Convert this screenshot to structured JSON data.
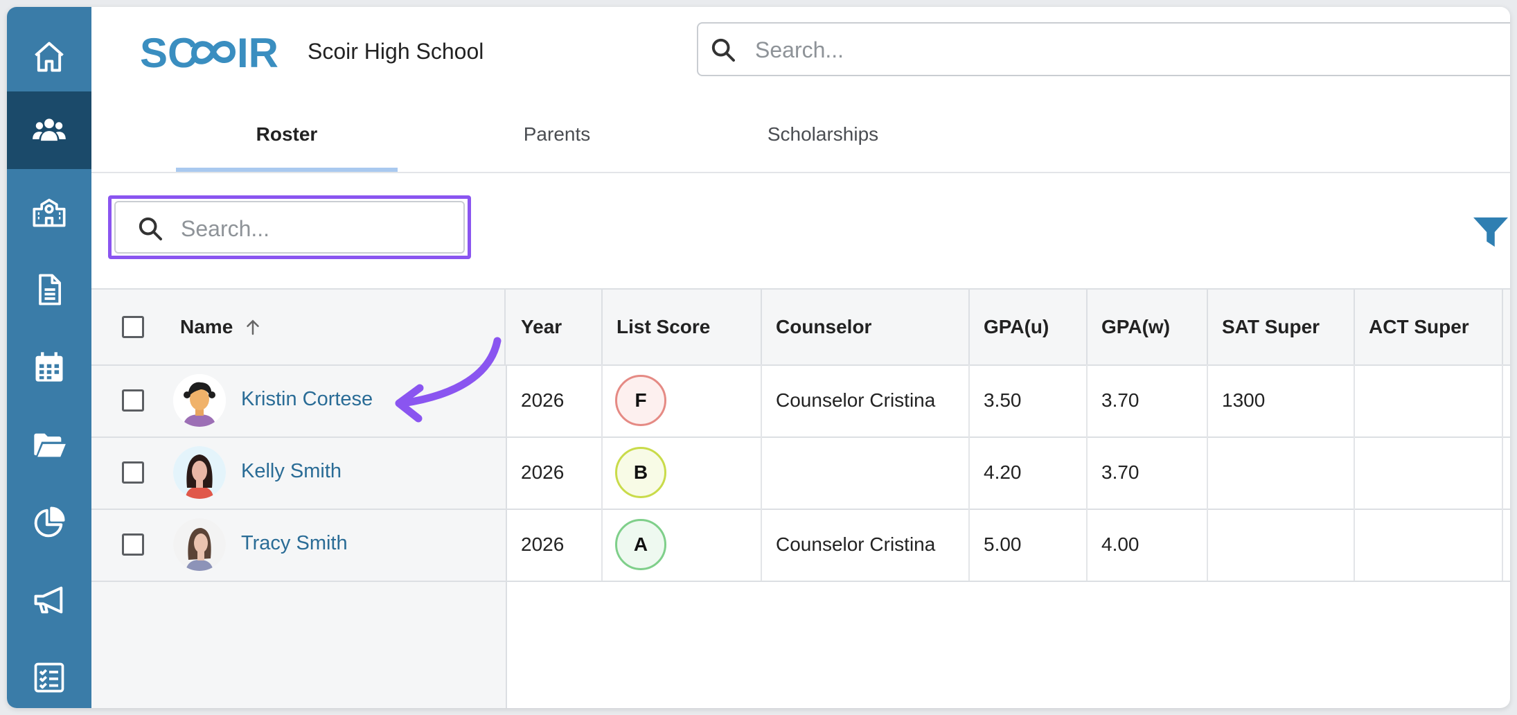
{
  "sidebar": {
    "items": [
      {
        "icon": "home-icon",
        "active": false
      },
      {
        "icon": "users-icon",
        "active": true
      },
      {
        "icon": "school-icon",
        "active": false
      },
      {
        "icon": "document-icon",
        "active": false
      },
      {
        "icon": "calendar-icon",
        "active": false
      },
      {
        "icon": "folder-open-icon",
        "active": false
      },
      {
        "icon": "pie-chart-icon",
        "active": false
      },
      {
        "icon": "megaphone-icon",
        "active": false
      },
      {
        "icon": "checklist-icon",
        "active": false
      }
    ],
    "bg_color": "#3a7ca8",
    "active_color": "#1b4a6a"
  },
  "header": {
    "logo_text": "SCOIR",
    "school_name": "Scoir High School",
    "search_placeholder": "Search..."
  },
  "tabs": [
    {
      "label": "Roster",
      "active": true
    },
    {
      "label": "Parents",
      "active": false
    },
    {
      "label": "Scholarships",
      "active": false
    }
  ],
  "roster": {
    "search_placeholder": "Search...",
    "highlight_color": "#8a55f0",
    "columns": {
      "name": "Name",
      "year": "Year",
      "list_score": "List Score",
      "counselor": "Counselor",
      "gpa_u": "GPA(u)",
      "gpa_w": "GPA(w)",
      "sat_super": "SAT Super",
      "act_super": "ACT Super"
    },
    "sort": {
      "column": "Name",
      "direction": "ascending"
    },
    "rows": [
      {
        "name": "Kristin Cortese",
        "year": "2026",
        "list_score": "F",
        "score_color": "#e58a84",
        "score_bg": "#fdf0ef",
        "counselor": "Counselor Cristina",
        "gpa_u": "3.50",
        "gpa_w": "3.70",
        "sat_super": "1300",
        "act_super": ""
      },
      {
        "name": "Kelly Smith",
        "year": "2026",
        "list_score": "B",
        "score_color": "#c9db4a",
        "score_bg": "#f8fbe6",
        "counselor": "",
        "gpa_u": "4.20",
        "gpa_w": "3.70",
        "sat_super": "",
        "act_super": ""
      },
      {
        "name": "Tracy Smith",
        "year": "2026",
        "list_score": "A",
        "score_color": "#7fcf8a",
        "score_bg": "#eef9f0",
        "counselor": "Counselor Cristina",
        "gpa_u": "5.00",
        "gpa_w": "4.00",
        "sat_super": "",
        "act_super": ""
      }
    ]
  },
  "annotation": {
    "arrow_color": "#8a55f0"
  }
}
